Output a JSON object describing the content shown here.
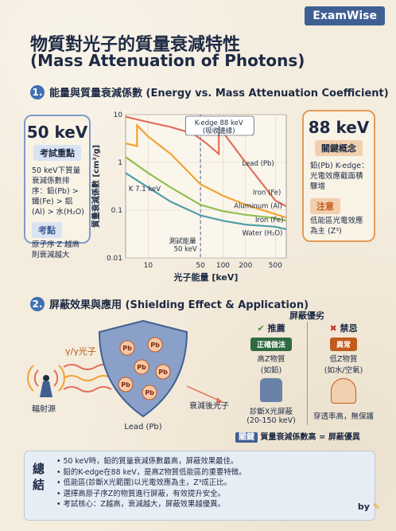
{
  "brand": "ExamWise",
  "title": {
    "line1": "物質對光子的質量衰減特性",
    "line2": "(Mass Attenuation of Photons)"
  },
  "section1": {
    "num": "1.",
    "title": "能量與質量衰減係數 (Energy vs. Mass Attenuation Coefficient)"
  },
  "left_card": {
    "energy": "50 keV",
    "tag": "考試重點",
    "points": [
      "50 keV下質量衰減係數排序：鉛(Pb) > 鐵(Fe) > 鋁(Al) > 水(H₂O)"
    ],
    "note_tag": "考點",
    "note": "原子序 Z 越高則衰減越大"
  },
  "right_card": {
    "energy": "88 keV",
    "tag": "關鍵概念",
    "points": [
      "鉛(Pb) K-edge：光電效應截面積驟增"
    ],
    "note_tag": "注意",
    "note": "低能區光電效應為主 (Z³)"
  },
  "chart_data": {
    "type": "line",
    "x_scale": "log",
    "y_scale": "log",
    "xlabel": "光子能量 [keV]",
    "ylabel": "質量衰減係數 [cm²/g]",
    "xlim": [
      5,
      700
    ],
    "ylim": [
      0.01,
      10
    ],
    "x_ticks": [
      "10",
      "50",
      "100",
      "200",
      "500"
    ],
    "y_ticks": [
      "10",
      "1",
      "0.1",
      "0.01"
    ],
    "series": [
      {
        "name": "Lead (Pb)",
        "color": "#e0705a",
        "points": [
          [
            5,
            9
          ],
          [
            10,
            7
          ],
          [
            20,
            5.5
          ],
          [
            40,
            4
          ],
          [
            60,
            2.5
          ],
          [
            88,
            1.5
          ],
          [
            88,
            5.5
          ],
          [
            110,
            3.5
          ],
          [
            200,
            1.0
          ],
          [
            500,
            0.16
          ],
          [
            700,
            0.12
          ]
        ]
      },
      {
        "name": "Iron (Fe)",
        "color": "#f1a235",
        "points": [
          [
            5,
            2.5
          ],
          [
            7.1,
            2.2
          ],
          [
            7.1,
            6
          ],
          [
            10,
            3.5
          ],
          [
            20,
            1.5
          ],
          [
            50,
            0.35
          ],
          [
            100,
            0.2
          ],
          [
            200,
            0.13
          ],
          [
            500,
            0.083
          ],
          [
            700,
            0.07
          ]
        ]
      },
      {
        "name": "Aluminum (Al)",
        "color": "#8fbf50",
        "points": [
          [
            5,
            1.3
          ],
          [
            10,
            0.6
          ],
          [
            20,
            0.3
          ],
          [
            50,
            0.13
          ],
          [
            100,
            0.095
          ],
          [
            200,
            0.08
          ],
          [
            500,
            0.068
          ],
          [
            700,
            0.06
          ]
        ]
      },
      {
        "name": "Water (H₂O)",
        "color": "#4f9ea8",
        "points": [
          [
            5,
            0.6
          ],
          [
            10,
            0.3
          ],
          [
            20,
            0.15
          ],
          [
            50,
            0.078
          ],
          [
            100,
            0.06
          ],
          [
            200,
            0.05
          ],
          [
            500,
            0.045
          ],
          [
            700,
            0.04
          ]
        ]
      }
    ],
    "annotations": {
      "kedge_label1": "K-edge 88 keV",
      "kedge_label2": "(吸收邊緣)",
      "k71": "K 7.1 keV",
      "test_energy1": "測試能量",
      "test_energy2": "50 keV",
      "lead_label": "Lead (Pb)",
      "iron_label1": "Iron (Fe)",
      "al_label": "Aluminum (Al)",
      "iron_label2": "Iron (Fe)",
      "water_label": "Water (H₂O)"
    }
  },
  "section2": {
    "num": "2.",
    "title": "屏蔽效果與應用 (Shielding Effect & Application)"
  },
  "shield": {
    "gamma": "γ/γ光子",
    "source": "輻射源",
    "lead": "Lead (Pb)",
    "after": "衰減後光子",
    "pb": "Pb"
  },
  "compare": {
    "title": "屏蔽優劣",
    "good_head": "推薦",
    "bad_head": "禁忌",
    "good_tag": "正確做法",
    "bad_tag": "異常",
    "good_text1": "高Z物質",
    "good_text2": "(如鉛)",
    "bad_text1": "低Z物質",
    "bad_text2": "(如水/空氣)",
    "good_use1": "診斷X光屏蔽",
    "good_use2": "(20-150 keV)",
    "bad_use": "穿透率高，無保護",
    "key_tag": "關鍵",
    "key_text": "質量衰減係數高 = 屏蔽優異"
  },
  "summary": {
    "head": "總結",
    "items": [
      "50 keV時，鉛的質量衰減係數最高，屏蔽效果最佳。",
      "鉛的K-edge在88 keV，是高Z物質低能區的重要特徵。",
      "低能區(診斷X光範圍)以光電效應為主，Z³成正比。",
      "選擇高原子序Z的物質進行屏蔽，有效提升安全。",
      "考試核心：Z越高，衰減越大，屏蔽效果越優異。"
    ]
  },
  "footer": "by"
}
